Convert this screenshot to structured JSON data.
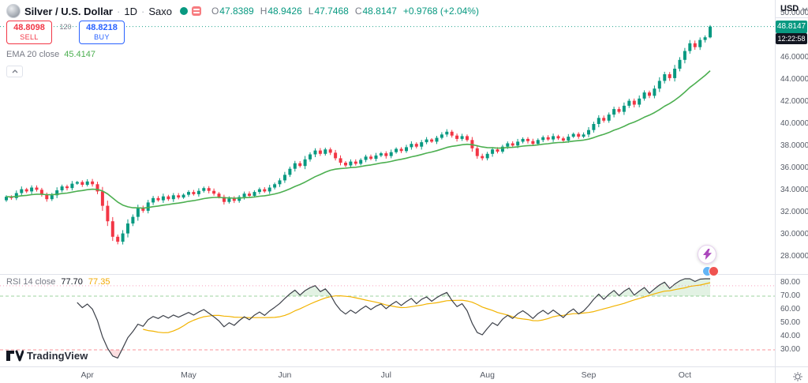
{
  "header": {
    "title": "Silver / U.S. Dollar",
    "separator": "·",
    "interval": "1D",
    "exchange": "Saxo",
    "ohlc": {
      "o_l": "O",
      "o": "47.8389",
      "h_l": "H",
      "h": "48.9426",
      "l_l": "L",
      "l": "47.7468",
      "c_l": "C",
      "c": "48.8147",
      "change": "+0.9768 (+2.04%)"
    },
    "sell": {
      "price": "48.8098",
      "label": "SELL"
    },
    "spread": "120",
    "buy": {
      "price": "48.8218",
      "label": "BUY"
    },
    "ema_label": "EMA 20 close",
    "ema_value": "45.4147"
  },
  "rsi_panel": {
    "label": "RSI 14 close",
    "value": "77.70",
    "ma_value": "77.35"
  },
  "price_axis": {
    "currency": "USD",
    "labels": [
      "50.0000",
      "46.0000",
      "44.0000",
      "42.0000",
      "40.0000",
      "38.0000",
      "36.0000",
      "34.0000",
      "32.0000",
      "30.0000",
      "28.0000"
    ],
    "last_price_badge": "48.8147",
    "countdown": "12:22:58"
  },
  "rsi_axis": {
    "labels": [
      "80.00",
      "70.00",
      "60.00",
      "50.00",
      "40.00",
      "30.00"
    ]
  },
  "time_axis": {
    "months": [
      {
        "label": "Apr",
        "index": 16
      },
      {
        "label": "May",
        "index": 36
      },
      {
        "label": "Jun",
        "index": 55
      },
      {
        "label": "Jul",
        "index": 75
      },
      {
        "label": "Aug",
        "index": 95
      },
      {
        "label": "Sep",
        "index": 115
      },
      {
        "label": "Oct",
        "index": 134
      }
    ]
  },
  "logo": {
    "text": "TradingView"
  },
  "colors": {
    "up": "#089981",
    "down": "#f23645",
    "ema": "#4caf50",
    "rsi_line": "#3c4049",
    "rsi_ma": "#f2b300",
    "band_up": "#4caf50",
    "band_down": "#f23645",
    "price_line": "#089981",
    "rsi_price_line": "#f06292",
    "accent_buy": "#2962ff"
  },
  "chart_data": {
    "type": "candlestick",
    "title": "Silver / U.S. Dollar, 1D, Saxo",
    "x_tick_labels": [
      "Apr",
      "May",
      "Jun",
      "Jul",
      "Aug",
      "Sep",
      "Oct"
    ],
    "price_axis_range": [
      28,
      50
    ],
    "rsi_levels": [
      80,
      70,
      60,
      50,
      40,
      30
    ],
    "last_candle": {
      "open": 47.8389,
      "high": 48.9426,
      "low": 47.7468,
      "close": 48.8147
    },
    "change": "+0.9768 (+2.04%)",
    "ema_period": 20,
    "ema_last": 45.4147,
    "rsi_period": 14,
    "rsi_last": 77.7,
    "rsi_ma_last": 77.35,
    "first_open": 33.1,
    "closes": [
      33.42,
      33.3,
      33.75,
      34.1,
      33.9,
      34.25,
      34.05,
      33.6,
      33.2,
      33.55,
      34.0,
      34.35,
      34.2,
      34.6,
      34.75,
      34.5,
      34.8,
      34.55,
      33.9,
      32.6,
      31.2,
      29.8,
      29.35,
      30.1,
      31.0,
      31.6,
      32.4,
      32.15,
      32.9,
      33.3,
      33.1,
      33.45,
      33.2,
      33.55,
      33.35,
      33.6,
      33.85,
      33.65,
      33.95,
      34.2,
      33.95,
      33.7,
      33.4,
      32.95,
      33.25,
      33.05,
      33.4,
      33.7,
      33.5,
      33.85,
      34.1,
      33.9,
      34.25,
      34.55,
      34.9,
      35.4,
      35.95,
      36.45,
      36.2,
      36.8,
      37.25,
      37.6,
      37.3,
      37.7,
      37.4,
      36.9,
      36.5,
      36.25,
      36.6,
      36.4,
      36.75,
      37.05,
      36.85,
      37.15,
      37.35,
      37.1,
      37.45,
      37.75,
      37.55,
      37.9,
      38.2,
      37.95,
      38.35,
      38.6,
      38.4,
      38.75,
      39.05,
      39.3,
      38.95,
      38.65,
      38.9,
      38.55,
      37.8,
      37.1,
      36.9,
      37.3,
      37.7,
      37.5,
      37.95,
      38.25,
      38.05,
      38.4,
      38.65,
      38.45,
      38.2,
      38.55,
      38.8,
      38.6,
      38.9,
      38.7,
      38.5,
      38.85,
      39.1,
      38.85,
      39.05,
      39.45,
      40.0,
      40.55,
      40.3,
      40.85,
      41.35,
      41.1,
      41.65,
      42.1,
      41.75,
      42.3,
      42.85,
      42.55,
      43.2,
      43.9,
      44.5,
      44.15,
      45.0,
      45.8,
      46.6,
      47.3,
      46.95,
      47.6,
      47.84,
      48.8147
    ]
  }
}
